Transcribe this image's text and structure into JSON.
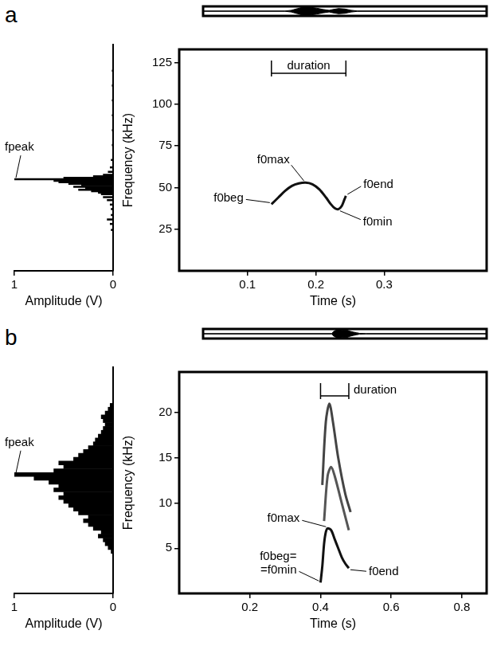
{
  "chart_data": [
    {
      "type": "area",
      "color": "#000000",
      "grid": false,
      "tick_labels": false,
      "xlim": [
        0,
        0.45
      ],
      "ylim": [
        -1.1,
        1.1
      ],
      "x": [
        0,
        0.13,
        0.14,
        0.15,
        0.16,
        0.17,
        0.18,
        0.19,
        0.2,
        0.205,
        0.215,
        0.225,
        0.235,
        0.245,
        0.45
      ],
      "envelope_max": [
        0.03,
        0.03,
        0.2,
        0.6,
        1.0,
        0.9,
        0.7,
        0.4,
        0.2,
        0.35,
        0.6,
        0.5,
        0.2,
        0.05,
        0.03
      ],
      "envelope_min": [
        -0.03,
        -0.03,
        -0.2,
        -0.6,
        -1.0,
        -0.9,
        -0.7,
        -0.4,
        -0.2,
        -0.35,
        -0.6,
        -0.5,
        -0.2,
        -0.05,
        -0.03
      ]
    },
    {
      "type": "bar",
      "orientation": "horizontal",
      "color": "#000000",
      "grid": false,
      "tick_labels": "x",
      "xlabel": "Amplitude (V)",
      "xlim": [
        1,
        0
      ],
      "xticks": [
        1,
        0
      ],
      "ylim": [
        0,
        133
      ],
      "y": [
        18,
        22,
        25,
        28,
        32,
        35,
        38,
        40,
        42,
        43,
        44,
        45,
        46,
        47,
        48,
        49,
        50,
        51,
        52,
        53,
        54,
        55,
        57,
        60,
        65,
        75,
        85,
        95,
        105,
        115,
        125
      ],
      "values": [
        0.02,
        0.03,
        0.06,
        0.02,
        0.02,
        0.03,
        0.06,
        0.1,
        0.12,
        0.15,
        0.22,
        0.35,
        0.28,
        0.4,
        0.32,
        0.45,
        0.55,
        0.6,
        1.0,
        0.5,
        0.2,
        0.1,
        0.05,
        0.03,
        0.02,
        0.01,
        0.01,
        0.01,
        0.01,
        0.01,
        0.01
      ],
      "annotations": [
        {
          "label": "fpeak",
          "x": 1.0,
          "y": 52
        }
      ]
    },
    {
      "type": "line",
      "panel_label": "a",
      "grid": false,
      "xlabel": "Time (s)",
      "ylabel": "Frequency (kHz)",
      "xlim": [
        0,
        0.45
      ],
      "xticks": [
        0.1,
        0.2,
        0.3
      ],
      "ylim": [
        0,
        133
      ],
      "yticks": [
        25,
        50,
        75,
        100,
        125
      ],
      "series": [
        {
          "color": "#111111",
          "x": [
            0.135,
            0.145,
            0.155,
            0.165,
            0.175,
            0.185,
            0.195,
            0.205,
            0.215,
            0.222,
            0.228,
            0.233,
            0.238,
            0.242,
            0.244
          ],
          "values": [
            40,
            44,
            48,
            51,
            52.5,
            53,
            52,
            49,
            44,
            40,
            37.5,
            37,
            39,
            43,
            45
          ]
        }
      ],
      "annotations": [
        {
          "label": "f0beg",
          "x": 0.135,
          "y": 40
        },
        {
          "label": "f0max",
          "x": 0.185,
          "y": 53
        },
        {
          "label": "f0end",
          "x": 0.244,
          "y": 45
        },
        {
          "label": "f0min",
          "x": 0.233,
          "y": 37
        }
      ],
      "duration": {
        "label": "duration",
        "start": 0.135,
        "end": 0.244
      }
    },
    {
      "type": "area",
      "color": "#000000",
      "grid": false,
      "tick_labels": false,
      "xlim": [
        0,
        0.87
      ],
      "ylim": [
        -1.1,
        1.1
      ],
      "x": [
        0,
        0.395,
        0.4,
        0.41,
        0.42,
        0.43,
        0.44,
        0.45,
        0.46,
        0.47,
        0.48,
        0.5,
        0.87
      ],
      "envelope_max": [
        0.03,
        0.03,
        0.5,
        0.9,
        1.0,
        0.8,
        0.9,
        0.6,
        0.4,
        0.25,
        0.1,
        0.04,
        0.03
      ],
      "envelope_min": [
        -0.03,
        -0.03,
        -0.5,
        -0.9,
        -1.0,
        -0.8,
        -0.9,
        -0.6,
        -0.4,
        -0.25,
        -0.1,
        -0.04,
        -0.03
      ]
    },
    {
      "type": "bar",
      "orientation": "horizontal",
      "color": "#000000",
      "grid": false,
      "tick_labels": "x",
      "xlabel": "Amplitude (V)",
      "xlim": [
        1,
        0
      ],
      "xticks": [
        1,
        0
      ],
      "ylim": [
        0,
        24.5
      ],
      "y": [
        3,
        3.5,
        4,
        4.5,
        5,
        5.5,
        6,
        6.5,
        7,
        7.5,
        8,
        8.5,
        9,
        9.5,
        10,
        10.5,
        11,
        11.5,
        12,
        12.5,
        13,
        13.5,
        14,
        14.5,
        15,
        15.5,
        16,
        16.5,
        17,
        17.5,
        18,
        18.5,
        19,
        19.5,
        20,
        20.5,
        21,
        21.5,
        22
      ],
      "values": [
        0.02,
        0.05,
        0.08,
        0.1,
        0.15,
        0.12,
        0.2,
        0.25,
        0.3,
        0.25,
        0.35,
        0.4,
        0.45,
        0.5,
        0.55,
        0.5,
        0.6,
        0.55,
        0.65,
        0.8,
        1.0,
        0.6,
        0.5,
        0.55,
        0.4,
        0.35,
        0.3,
        0.25,
        0.2,
        0.18,
        0.15,
        0.12,
        0.1,
        0.08,
        0.1,
        0.12,
        0.08,
        0.05,
        0.03
      ],
      "annotations": [
        {
          "label": "fpeak",
          "x": 1.0,
          "y": 13
        }
      ]
    },
    {
      "type": "line",
      "panel_label": "b",
      "grid": false,
      "xlabel": "Time (s)",
      "ylabel": "Frequency (kHz)",
      "xlim": [
        0,
        0.87
      ],
      "xticks": [
        0.2,
        0.4,
        0.6,
        0.8
      ],
      "ylim": [
        0,
        24.5
      ],
      "yticks": [
        5,
        10,
        15,
        20
      ],
      "series": [
        {
          "color": "#111111",
          "x": [
            0.4,
            0.405,
            0.41,
            0.415,
            0.42,
            0.43,
            0.44,
            0.45,
            0.46,
            0.47,
            0.48
          ],
          "values": [
            1.2,
            3,
            5.5,
            6.8,
            7.2,
            7.0,
            6,
            5,
            4,
            3.3,
            2.8
          ]
        },
        {
          "color": "#444444",
          "x": [
            0.405,
            0.415,
            0.425,
            0.435,
            0.45,
            0.47,
            0.485
          ],
          "values": [
            12,
            19,
            21,
            19,
            15,
            11,
            9
          ]
        },
        {
          "color": "#555555",
          "x": [
            0.41,
            0.42,
            0.43,
            0.44,
            0.46,
            0.48
          ],
          "values": [
            8,
            13,
            14,
            13,
            10,
            7
          ]
        }
      ],
      "annotations": [
        {
          "label": "f0max",
          "x": 0.42,
          "y": 7.2
        },
        {
          "label": "f0beg=\n=f0min",
          "x": 0.4,
          "y": 1.2
        },
        {
          "label": "f0end",
          "x": 0.48,
          "y": 2.8
        }
      ],
      "duration": {
        "label": "duration",
        "start": 0.4,
        "end": 0.48
      }
    }
  ]
}
